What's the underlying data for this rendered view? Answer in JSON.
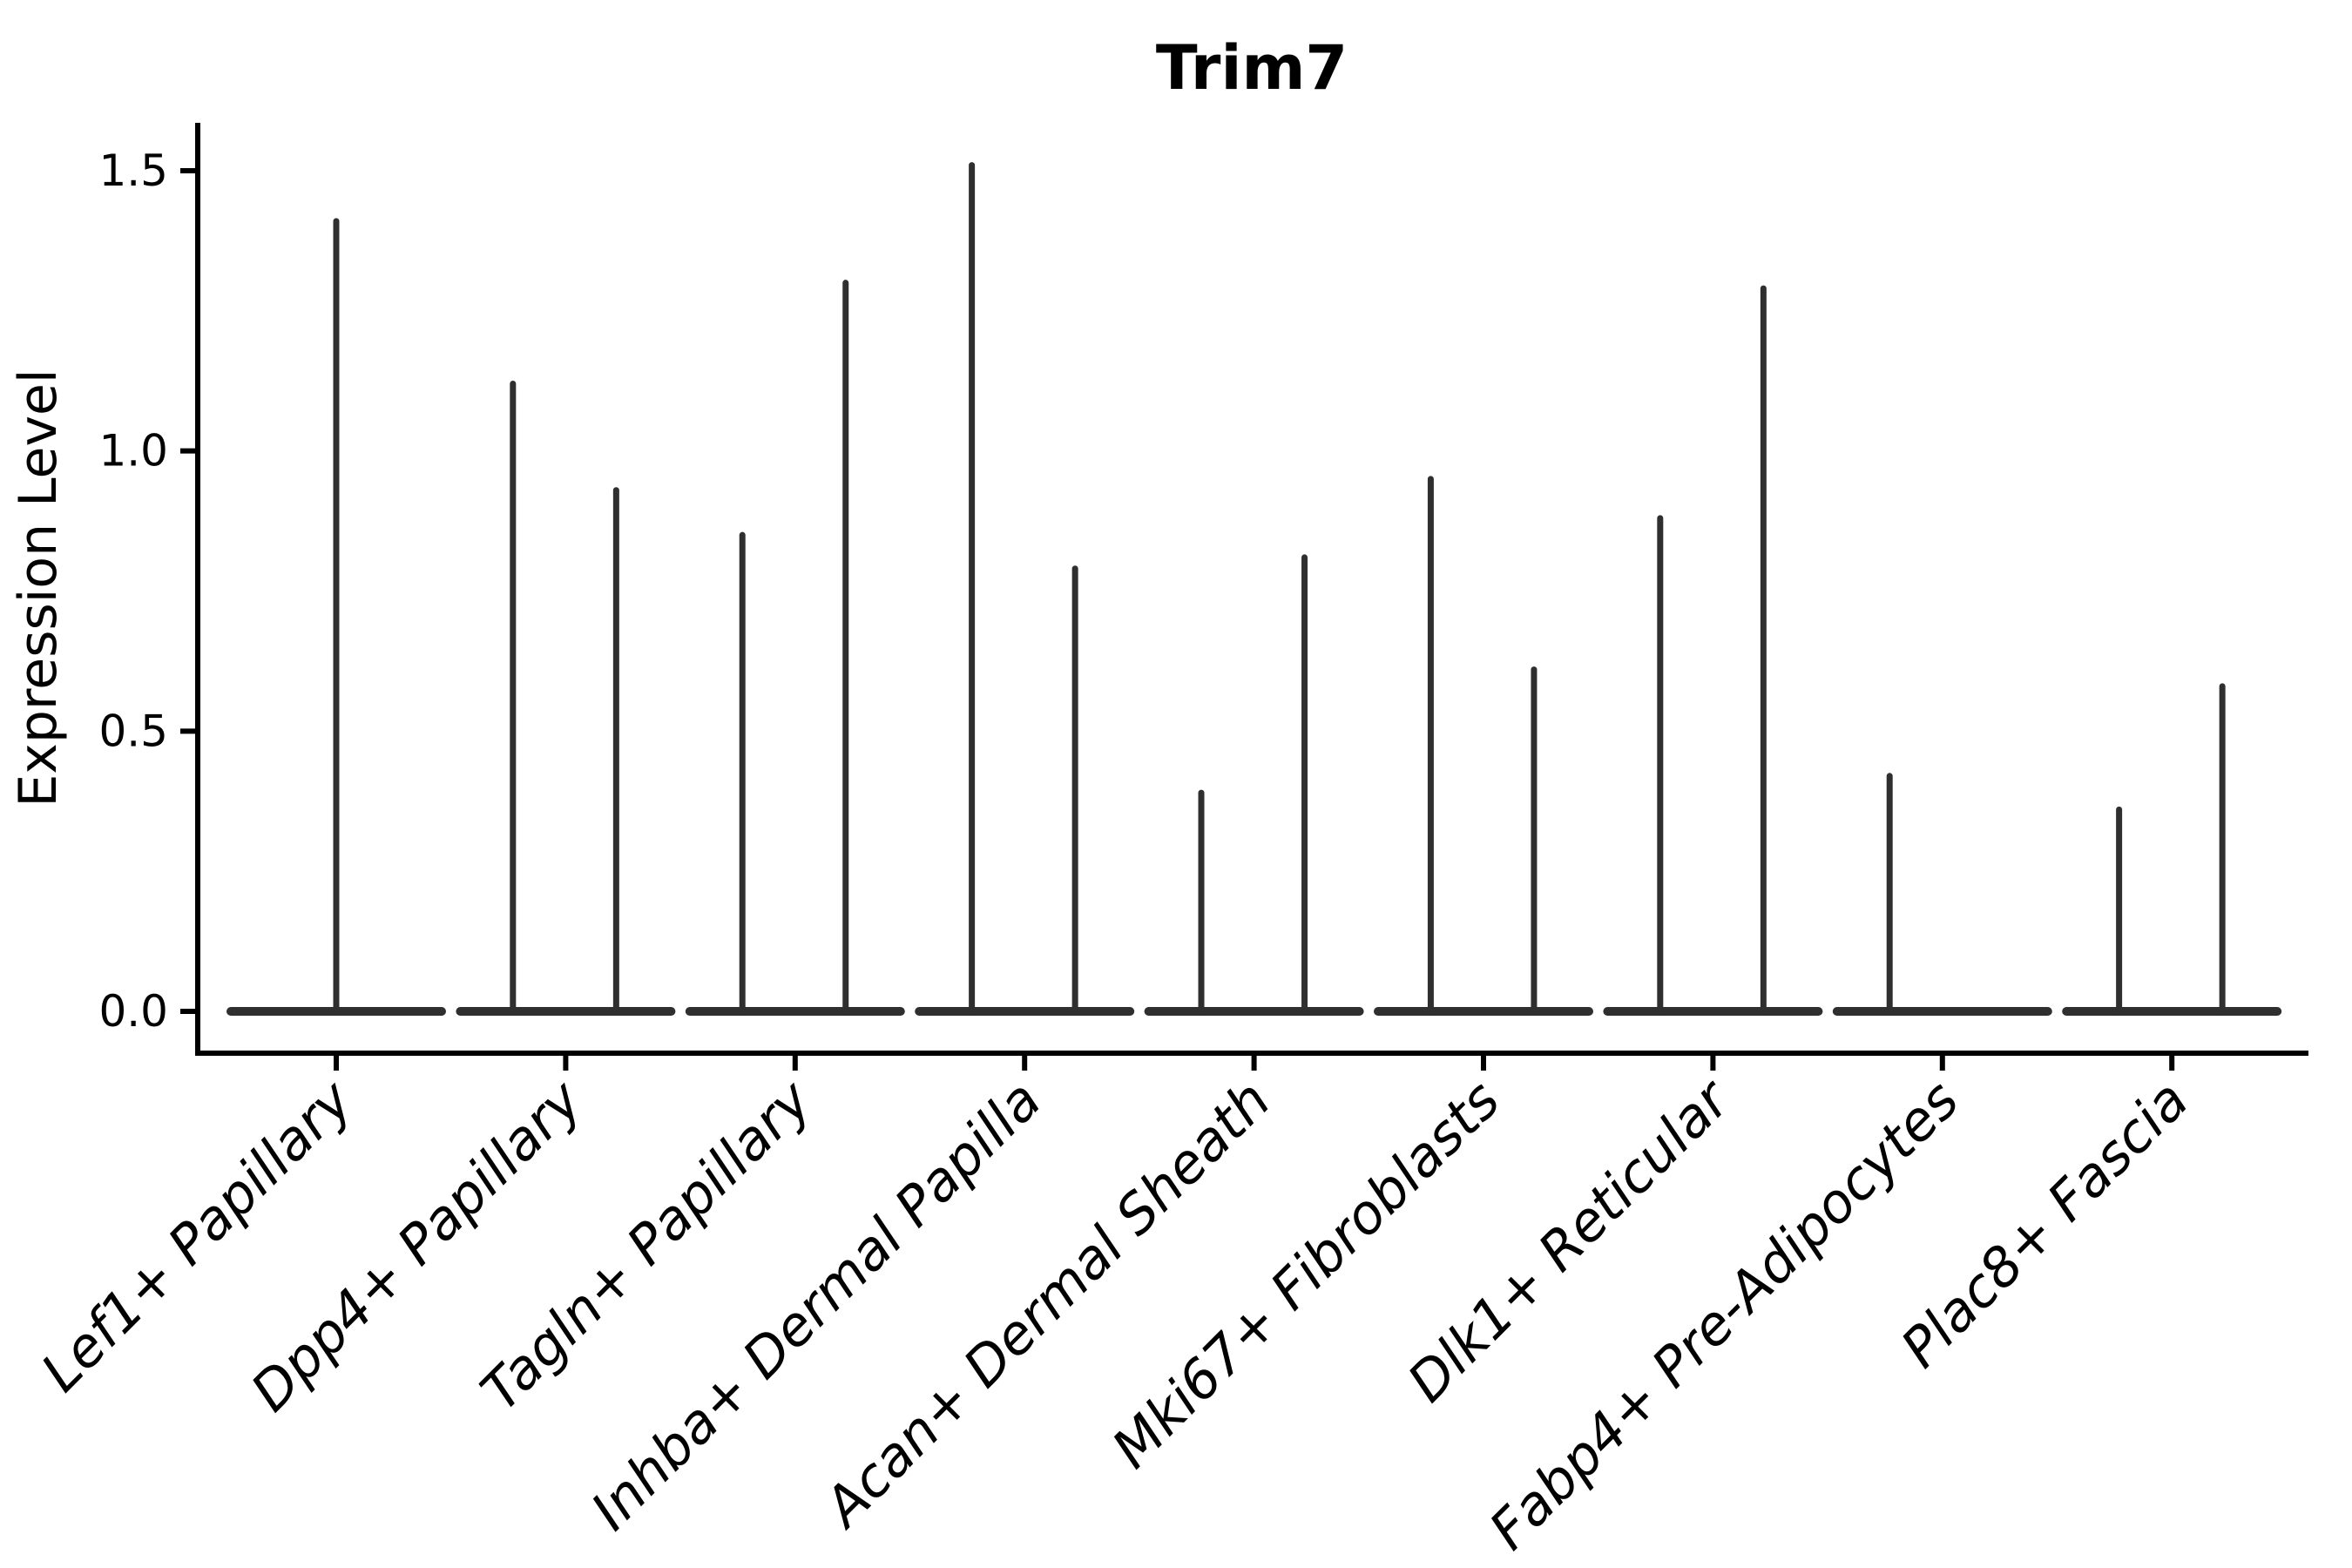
{
  "style": {
    "background": "#ffffff",
    "axis_color": "#000000",
    "violin_color": "#2f2f2f"
  },
  "chart_data": {
    "type": "violin",
    "title": "Trim7",
    "xlabel": "",
    "ylabel": "Expression Level",
    "yticks": [
      "0.0",
      "0.5",
      "1.0",
      "1.5"
    ],
    "ytick_values": [
      0.0,
      0.5,
      1.0,
      1.5
    ],
    "ylim": [
      -0.07,
      1.59
    ],
    "grid": false,
    "legend_position": "none",
    "categories": [
      "Lef1+ Papillary",
      "Dpp4+ Papillary",
      "Tagln+ Papillary",
      "Inhba+ Dermal Papilla",
      "Acan+ Dermal Sheath",
      "Mki67+ Fibroblasts",
      "Dlk1+ Reticular",
      "Fabp4+ Pre-Adipocytes",
      "Plac8+ Fascia"
    ],
    "violins": [
      {
        "category": "Lef1+ Papillary",
        "spikes": [
          {
            "offset": 0.0,
            "peak": 1.41
          }
        ]
      },
      {
        "category": "Dpp4+ Papillary",
        "spikes": [
          {
            "offset": -0.23,
            "peak": 1.12
          },
          {
            "offset": 0.22,
            "peak": 0.93
          }
        ]
      },
      {
        "category": "Tagln+ Papillary",
        "spikes": [
          {
            "offset": -0.23,
            "peak": 0.85
          },
          {
            "offset": 0.22,
            "peak": 1.3
          }
        ]
      },
      {
        "category": "Inhba+ Dermal Papilla",
        "spikes": [
          {
            "offset": -0.23,
            "peak": 1.51
          },
          {
            "offset": 0.22,
            "peak": 0.79
          }
        ]
      },
      {
        "category": "Acan+ Dermal Sheath",
        "spikes": [
          {
            "offset": -0.23,
            "peak": 0.39
          },
          {
            "offset": 0.22,
            "peak": 0.81
          }
        ]
      },
      {
        "category": "Mki67+ Fibroblasts",
        "spikes": [
          {
            "offset": -0.23,
            "peak": 0.95
          },
          {
            "offset": 0.22,
            "peak": 0.61
          }
        ]
      },
      {
        "category": "Dlk1+ Reticular",
        "spikes": [
          {
            "offset": -0.23,
            "peak": 0.88
          },
          {
            "offset": 0.22,
            "peak": 1.29
          }
        ]
      },
      {
        "category": "Fabp4+ Pre-Adipocytes",
        "spikes": [
          {
            "offset": -0.23,
            "peak": 0.42
          }
        ]
      },
      {
        "category": "Plac8+ Fascia",
        "spikes": [
          {
            "offset": -0.23,
            "peak": 0.36
          },
          {
            "offset": 0.22,
            "peak": 0.58
          }
        ]
      }
    ],
    "baseline_value": 0.0,
    "violin_base_halfwidth": 0.46
  }
}
